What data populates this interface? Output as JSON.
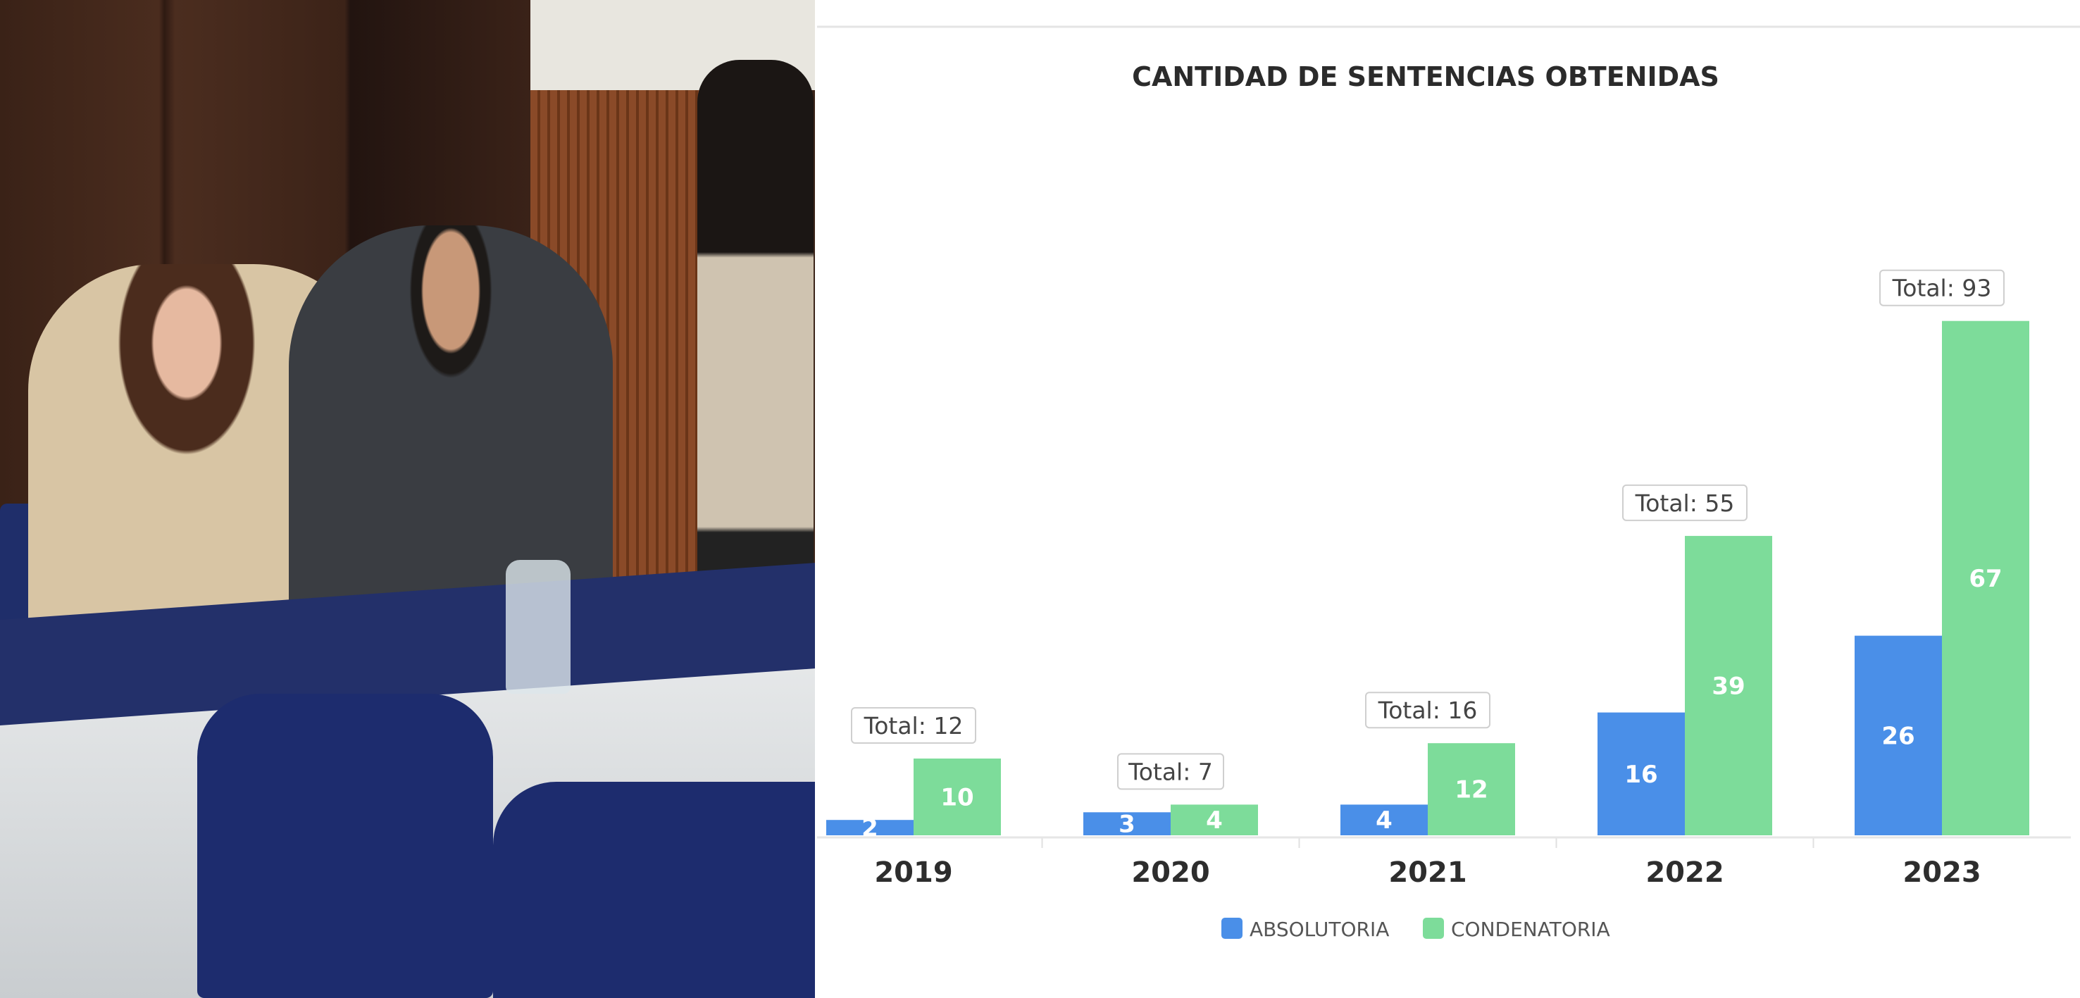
{
  "photo": {
    "description_label": ""
  },
  "chart_data": {
    "type": "bar",
    "title": "CANTIDAD DE SENTENCIAS OBTENIDAS",
    "categories": [
      "2019",
      "2020",
      "2021",
      "2022",
      "2023"
    ],
    "series": [
      {
        "name": "ABSOLUTORIA",
        "color": "#4a8fe8",
        "values": [
          2,
          3,
          4,
          16,
          26
        ]
      },
      {
        "name": "CONDENATORIA",
        "color": "#7ddc9a",
        "values": [
          10,
          4,
          12,
          39,
          67
        ]
      }
    ],
    "totals": [
      "Total: 12",
      "Total: 7",
      "Total: 16",
      "Total: 55",
      "Total: 93"
    ],
    "xlabel": "",
    "ylabel": "",
    "ylim": [
      0,
      100
    ],
    "grid": false,
    "legend": "bottom"
  }
}
